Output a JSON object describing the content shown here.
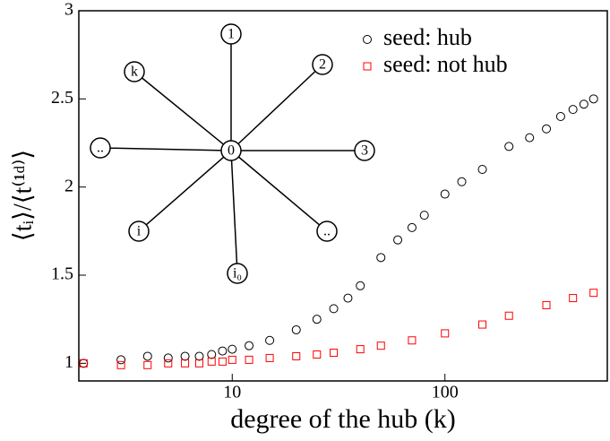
{
  "chart_data": {
    "type": "scatter",
    "x_label": "degree of the hub (k)",
    "y_label": "⟨tᵢ⟩/⟨t⁽¹ᵈ⁾⟩",
    "xscale": "log",
    "xlim": [
      1.9,
      580
    ],
    "xticks": [
      10,
      100
    ],
    "ylim": [
      0.9,
      3
    ],
    "yticks": [
      1,
      1.5,
      2,
      2.5,
      3
    ],
    "legend": "upper right",
    "series": [
      {
        "name": "seed: hub",
        "color": "#000000",
        "marker": "circle",
        "x": [
          2,
          3,
          4,
          5,
          6,
          7,
          8,
          9,
          10,
          12,
          15,
          20,
          25,
          30,
          35,
          40,
          50,
          60,
          70,
          80,
          100,
          120,
          150,
          200,
          250,
          300,
          350,
          400,
          450,
          500
        ],
        "values": [
          1.0,
          1.02,
          1.04,
          1.03,
          1.04,
          1.04,
          1.05,
          1.07,
          1.08,
          1.1,
          1.13,
          1.19,
          1.25,
          1.31,
          1.37,
          1.44,
          1.6,
          1.7,
          1.77,
          1.84,
          1.96,
          2.03,
          2.1,
          2.23,
          2.28,
          2.33,
          2.4,
          2.44,
          2.47,
          2.5
        ]
      },
      {
        "name": "seed: not hub",
        "color": "#ff0000",
        "marker": "square",
        "x": [
          2,
          3,
          4,
          5,
          6,
          7,
          8,
          9,
          10,
          12,
          15,
          20,
          25,
          30,
          40,
          50,
          70,
          100,
          150,
          200,
          300,
          400,
          500
        ],
        "values": [
          1.0,
          0.99,
          0.99,
          1.0,
          1.0,
          1.0,
          1.01,
          1.01,
          1.02,
          1.02,
          1.03,
          1.04,
          1.05,
          1.06,
          1.08,
          1.1,
          1.13,
          1.17,
          1.22,
          1.27,
          1.33,
          1.37,
          1.4
        ]
      }
    ],
    "inset_labels": [
      "0",
      "1",
      "2",
      "3",
      "..",
      "i₀",
      "i",
      "..",
      "k"
    ]
  }
}
